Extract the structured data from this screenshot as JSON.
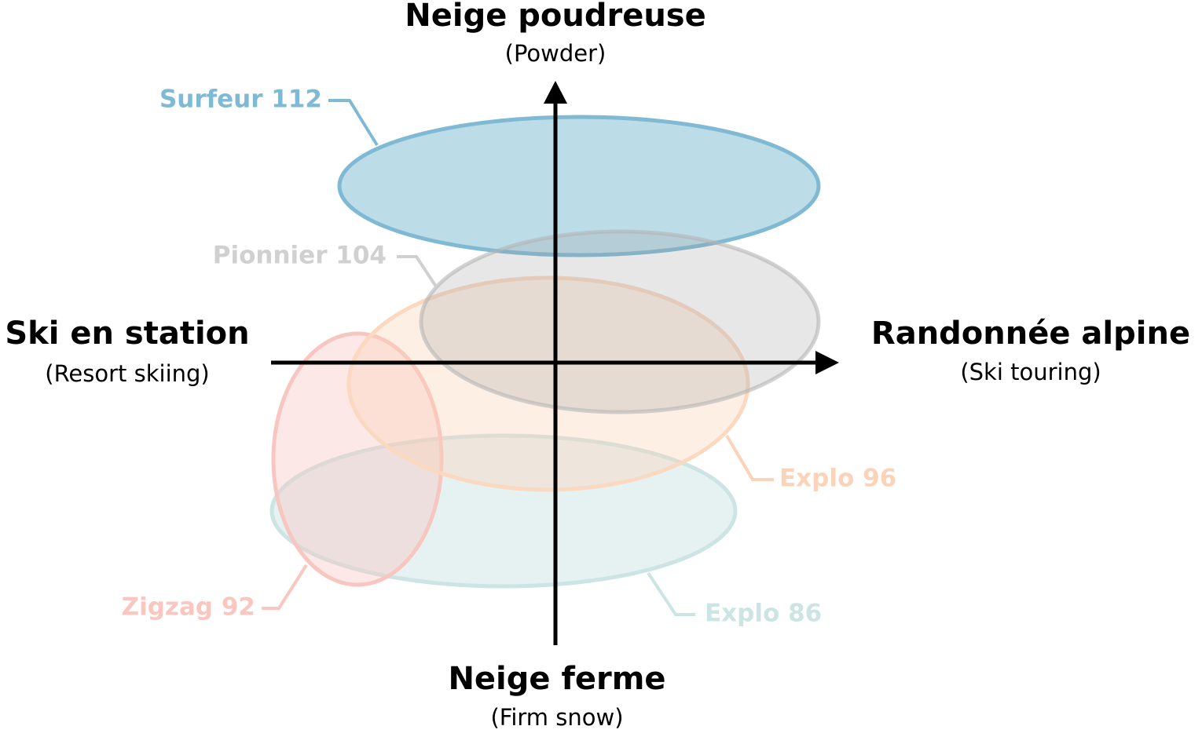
{
  "axes": {
    "top": {
      "title": "Neige poudreuse",
      "subtitle": "(Powder)"
    },
    "bottom": {
      "title": "Neige ferme",
      "subtitle": "(Firm snow)"
    },
    "left": {
      "title": "Ski en station",
      "subtitle": "(Resort skiing)"
    },
    "right": {
      "title": "Randonnée alpine",
      "subtitle": "(Ski touring)"
    }
  },
  "models": [
    {
      "label": "Surfeur 112"
    },
    {
      "label": "Pionnier 104"
    },
    {
      "label": "Explo 96"
    },
    {
      "label": "Zigzag 92"
    },
    {
      "label": "Explo 86"
    }
  ]
}
